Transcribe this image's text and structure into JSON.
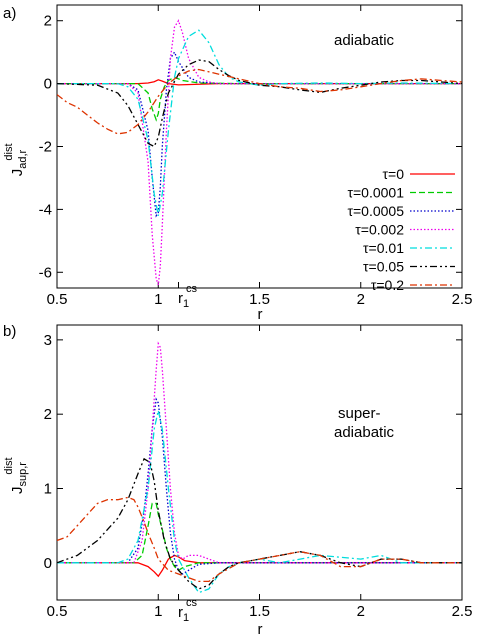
{
  "chart_data": [
    {
      "type": "line",
      "panel_label": "a)",
      "annotation": "adiabatic",
      "ylabel": {
        "base": "J",
        "sup": "dist",
        "sub": "ad,r"
      },
      "xlabel": "r",
      "xlim": [
        0.5,
        2.5
      ],
      "ylim": [
        -6.5,
        2.5
      ],
      "xticks": [
        "0.5",
        "1",
        "1.5",
        "2",
        "2.5"
      ],
      "yticks": [
        "-6",
        "-4",
        "-2",
        "0",
        "2"
      ],
      "xtick_values": [
        0.5,
        1,
        1.5,
        2,
        2.5
      ],
      "ytick_values": [
        -6,
        -4,
        -2,
        0,
        2
      ],
      "extra_xtick": {
        "value": 1.1,
        "label": "r",
        "sub": "1",
        "sup": "cs"
      },
      "legend": {
        "position": "right"
      },
      "series": [
        {
          "name": "τ=0",
          "color": "#ff0000",
          "dash": "solid",
          "x": [
            0.5,
            0.9,
            0.95,
            0.98,
            1.0,
            1.02,
            1.05,
            1.1,
            1.3,
            1.6,
            2.0,
            2.5
          ],
          "y": [
            0,
            0,
            0.02,
            0.06,
            0.12,
            0.08,
            0.0,
            -0.04,
            0.0,
            0.0,
            0.0,
            0.0
          ]
        },
        {
          "name": "τ=0.0001",
          "color": "#00cc00",
          "dash": "dashed",
          "x": [
            0.5,
            0.9,
            0.95,
            0.97,
            0.99,
            1.0,
            1.01,
            1.03,
            1.05,
            1.08,
            1.12,
            1.2,
            1.4,
            1.6,
            2.0,
            2.5
          ],
          "y": [
            0,
            0,
            -0.3,
            -0.8,
            -1.15,
            -0.95,
            -0.5,
            -0.1,
            0.1,
            0.2,
            0.1,
            0.02,
            0,
            0,
            0,
            0
          ]
        },
        {
          "name": "τ=0.0005",
          "color": "#0000cc",
          "dash": "dotted",
          "x": [
            0.5,
            0.85,
            0.9,
            0.95,
            0.97,
            0.99,
            1.0,
            1.01,
            1.02,
            1.04,
            1.06,
            1.08,
            1.1,
            1.15,
            1.2,
            1.3,
            1.4,
            1.6,
            2.0,
            2.5
          ],
          "y": [
            0,
            0,
            -0.2,
            -1.5,
            -3.0,
            -4.2,
            -4.1,
            -3.3,
            -2.0,
            -0.2,
            0.8,
            1.0,
            0.7,
            0.2,
            0.05,
            0,
            0,
            0,
            0,
            0
          ]
        },
        {
          "name": "τ=0.002",
          "color": "#ee00ee",
          "dash": "dotted",
          "x": [
            0.5,
            0.85,
            0.9,
            0.95,
            0.97,
            0.99,
            1.0,
            1.01,
            1.02,
            1.04,
            1.06,
            1.08,
            1.1,
            1.12,
            1.15,
            1.2,
            1.25,
            1.3,
            1.4,
            1.6,
            2.0,
            2.5
          ],
          "y": [
            0,
            0,
            -0.3,
            -2.5,
            -4.8,
            -6.2,
            -6.4,
            -5.8,
            -4.5,
            -1.5,
            0.8,
            1.8,
            2.0,
            1.6,
            0.8,
            0.2,
            0.05,
            0,
            0,
            0,
            0,
            0
          ]
        },
        {
          "name": "τ=0.01",
          "color": "#00dddd",
          "dash": "dashdot",
          "x": [
            0.5,
            0.8,
            0.85,
            0.9,
            0.95,
            0.98,
            1.0,
            1.02,
            1.05,
            1.08,
            1.1,
            1.15,
            1.2,
            1.25,
            1.3,
            1.35,
            1.4,
            1.5,
            1.6,
            1.8,
            2.0,
            2.2,
            2.5
          ],
          "y": [
            0,
            0,
            -0.1,
            -0.5,
            -1.8,
            -3.5,
            -4.2,
            -3.5,
            -1.5,
            0.2,
            0.8,
            1.5,
            1.7,
            1.3,
            0.6,
            0.2,
            0.05,
            -0.05,
            0,
            0.02,
            0,
            0.02,
            0
          ]
        },
        {
          "name": "τ=0.05",
          "color": "#000000",
          "dash": "dashdotdot",
          "x": [
            0.5,
            0.7,
            0.8,
            0.85,
            0.9,
            0.95,
            0.98,
            1.0,
            1.02,
            1.05,
            1.1,
            1.15,
            1.2,
            1.25,
            1.3,
            1.35,
            1.4,
            1.5,
            1.6,
            1.7,
            1.8,
            1.9,
            2.0,
            2.1,
            2.2,
            2.3,
            2.4,
            2.5
          ],
          "y": [
            0,
            -0.05,
            -0.3,
            -0.7,
            -1.3,
            -1.9,
            -2.0,
            -1.7,
            -1.1,
            -0.3,
            0.3,
            0.6,
            0.75,
            0.7,
            0.45,
            0.25,
            0.1,
            -0.05,
            -0.1,
            -0.2,
            -0.28,
            -0.15,
            -0.05,
            0.05,
            0.1,
            0.1,
            0.05,
            0
          ]
        },
        {
          "name": "τ=0.2",
          "color": "#dd3300",
          "dash": "dashdot",
          "x": [
            0.5,
            0.55,
            0.6,
            0.65,
            0.7,
            0.75,
            0.8,
            0.85,
            0.9,
            0.95,
            1.0,
            1.05,
            1.1,
            1.15,
            1.2,
            1.3,
            1.4,
            1.5,
            1.6,
            1.7,
            1.8,
            1.9,
            2.0,
            2.1,
            2.2,
            2.3,
            2.4,
            2.5
          ],
          "y": [
            -0.35,
            -0.6,
            -0.75,
            -1.0,
            -1.25,
            -1.45,
            -1.6,
            -1.55,
            -1.3,
            -0.9,
            -0.4,
            0.0,
            0.25,
            0.4,
            0.45,
            0.3,
            0.15,
            0.0,
            -0.1,
            -0.15,
            -0.25,
            -0.2,
            -0.1,
            0.0,
            0.1,
            0.15,
            0.1,
            0.05
          ]
        }
      ]
    },
    {
      "type": "line",
      "panel_label": "b)",
      "annotation": [
        "super-",
        "adiabatic"
      ],
      "ylabel": {
        "base": "J",
        "sup": "dist",
        "sub": "sup,r"
      },
      "xlabel": "r",
      "xlim": [
        0.5,
        2.5
      ],
      "ylim": [
        -0.5,
        3.2
      ],
      "xticks": [
        "0.5",
        "1",
        "1.5",
        "2",
        "2.5"
      ],
      "yticks": [
        "0",
        "1",
        "2",
        "3"
      ],
      "xtick_values": [
        0.5,
        1,
        1.5,
        2,
        2.5
      ],
      "ytick_values": [
        0,
        1,
        2,
        3
      ],
      "extra_xtick": {
        "value": 1.1,
        "label": "r",
        "sub": "1",
        "sup": "cs"
      },
      "series": [
        {
          "name": "τ=0",
          "color": "#ff0000",
          "dash": "solid",
          "x": [
            0.5,
            0.9,
            0.95,
            0.98,
            1.0,
            1.02,
            1.05,
            1.08,
            1.1,
            1.13,
            1.2,
            1.4,
            1.6,
            2.0,
            2.5
          ],
          "y": [
            0,
            0,
            -0.05,
            -0.12,
            -0.18,
            -0.1,
            0.05,
            0.1,
            0.08,
            0.03,
            0,
            0,
            0,
            0,
            0
          ]
        },
        {
          "name": "τ=0.0001",
          "color": "#00cc00",
          "dash": "dashed",
          "x": [
            0.5,
            0.88,
            0.92,
            0.95,
            0.97,
            0.99,
            1.0,
            1.02,
            1.04,
            1.06,
            1.08,
            1.1,
            1.13,
            1.2,
            1.4,
            1.6,
            2.0,
            2.5
          ],
          "y": [
            0,
            0,
            0.1,
            0.5,
            0.8,
            0.8,
            0.65,
            0.45,
            0.2,
            0.05,
            -0.05,
            -0.1,
            -0.05,
            0,
            0,
            0,
            0,
            0
          ]
        },
        {
          "name": "τ=0.0005",
          "color": "#0000cc",
          "dash": "dotted",
          "x": [
            0.5,
            0.85,
            0.9,
            0.93,
            0.95,
            0.97,
            0.99,
            1.0,
            1.02,
            1.04,
            1.06,
            1.08,
            1.1,
            1.12,
            1.15,
            1.2,
            1.3,
            1.5,
            2.0,
            2.5
          ],
          "y": [
            0,
            0,
            0.2,
            0.7,
            1.2,
            1.8,
            2.2,
            2.15,
            1.7,
            1.0,
            0.4,
            0.05,
            -0.1,
            -0.15,
            -0.1,
            -0.02,
            0,
            0,
            0,
            0
          ]
        },
        {
          "name": "τ=0.002",
          "color": "#ee00ee",
          "dash": "dotted",
          "x": [
            0.5,
            0.88,
            0.92,
            0.95,
            0.97,
            0.99,
            1.0,
            1.01,
            1.02,
            1.04,
            1.06,
            1.08,
            1.1,
            1.12,
            1.15,
            1.2,
            1.25,
            1.3,
            1.4,
            1.5,
            2.0,
            2.5
          ],
          "y": [
            0,
            0,
            0.3,
            1.0,
            1.8,
            2.6,
            2.95,
            2.9,
            2.6,
            1.8,
            1.0,
            0.4,
            0.1,
            0.05,
            0.1,
            0.1,
            0.05,
            0,
            0,
            0,
            0,
            0
          ]
        },
        {
          "name": "τ=0.01",
          "color": "#00dddd",
          "dash": "dashdot",
          "x": [
            0.5,
            0.8,
            0.85,
            0.9,
            0.95,
            0.98,
            1.0,
            1.02,
            1.05,
            1.08,
            1.1,
            1.15,
            1.2,
            1.25,
            1.3,
            1.35,
            1.4,
            1.5,
            1.6,
            1.8,
            2.0,
            2.1,
            2.2,
            2.5
          ],
          "y": [
            0,
            0,
            0.05,
            0.3,
            1.0,
            1.8,
            2.05,
            1.8,
            1.0,
            0.3,
            0.05,
            -0.2,
            -0.4,
            -0.35,
            -0.15,
            -0.05,
            0,
            0.05,
            0,
            0.1,
            0.05,
            0.1,
            0,
            0
          ]
        },
        {
          "name": "τ=0.05",
          "color": "#000000",
          "dash": "dashdotdot",
          "x": [
            0.5,
            0.6,
            0.7,
            0.8,
            0.85,
            0.9,
            0.93,
            0.96,
            0.98,
            1.0,
            1.03,
            1.06,
            1.1,
            1.15,
            1.2,
            1.25,
            1.3,
            1.35,
            1.4,
            1.5,
            1.6,
            1.7,
            1.8,
            1.9,
            2.0,
            2.1,
            2.2,
            2.3,
            2.4,
            2.5
          ],
          "y": [
            0,
            0.1,
            0.3,
            0.6,
            0.85,
            1.2,
            1.4,
            1.35,
            1.1,
            0.7,
            0.3,
            0.05,
            -0.1,
            -0.25,
            -0.35,
            -0.3,
            -0.15,
            -0.05,
            0,
            0.05,
            0.1,
            0.15,
            0.1,
            0.0,
            -0.05,
            0.05,
            0.05,
            0.0,
            0.0,
            0.0
          ]
        },
        {
          "name": "τ=0.2",
          "color": "#dd3300",
          "dash": "dashdot",
          "x": [
            0.5,
            0.55,
            0.6,
            0.65,
            0.7,
            0.75,
            0.8,
            0.85,
            0.88,
            0.9,
            0.93,
            0.95,
            0.98,
            1.0,
            1.05,
            1.1,
            1.15,
            1.2,
            1.25,
            1.3,
            1.4,
            1.5,
            1.6,
            1.7,
            1.8,
            1.9,
            2.0,
            2.1,
            2.2,
            2.3,
            2.4,
            2.5
          ],
          "y": [
            0.3,
            0.35,
            0.5,
            0.65,
            0.8,
            0.85,
            0.85,
            0.88,
            0.85,
            0.75,
            0.55,
            0.4,
            0.2,
            0.05,
            -0.1,
            -0.15,
            -0.2,
            -0.25,
            -0.25,
            -0.15,
            0.0,
            0.05,
            0.1,
            0.15,
            0.1,
            -0.05,
            -0.05,
            0.05,
            0.05,
            0.0,
            0.0,
            0.0
          ]
        }
      ]
    }
  ]
}
